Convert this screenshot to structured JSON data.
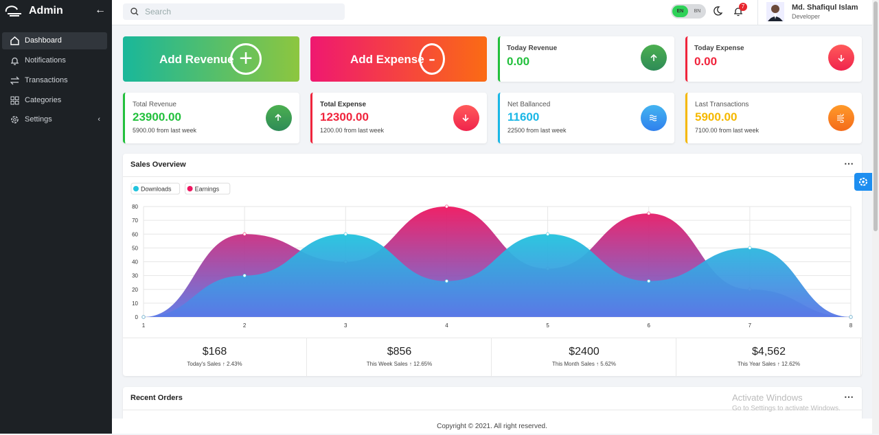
{
  "sidebar": {
    "brand": "Admin",
    "menu": [
      "Dashboard",
      "Notifications",
      "Transactions",
      "Categories",
      "Settings"
    ]
  },
  "header": {
    "search_placeholder": "Search",
    "languages": [
      "EN",
      "BN"
    ],
    "notification_count": 7,
    "user": {
      "name": "Md. Shafiqul Islam",
      "role": "Developer"
    }
  },
  "actions": [
    {
      "label": "Add Revenue",
      "symbol": "+"
    },
    {
      "label": "Add Expense",
      "symbol": "-"
    }
  ],
  "today": [
    {
      "title": "Today Revenue",
      "value": "0.00"
    },
    {
      "title": "Today Expense",
      "value": "0.00"
    }
  ],
  "stats": [
    {
      "title": "Total Revenue",
      "value": "23900.00",
      "note": "5900.00 from last week"
    },
    {
      "title": "Total Expense",
      "value": "12300.00",
      "note": "1200.00 from last week"
    },
    {
      "title": "Net Ballanced",
      "value": "11600",
      "note": "22500 from last week"
    },
    {
      "title": "Last Transactions",
      "value": "5900.00",
      "note": "7100.00 from last week"
    }
  ],
  "sales_overview": {
    "title": "Sales Overview",
    "chart": {
      "type": "area",
      "x": [
        1,
        2,
        3,
        4,
        5,
        6,
        7,
        8
      ],
      "series": [
        {
          "name": "Downloads",
          "color": "#22c3dd",
          "values": [
            0,
            30,
            60,
            26,
            60,
            26,
            50,
            0
          ]
        },
        {
          "name": "Earnings",
          "color": "#ee1660",
          "values": [
            0,
            60,
            40,
            80,
            35,
            75,
            20,
            0
          ]
        }
      ],
      "xlim": [
        1,
        8
      ],
      "ylim": [
        0,
        80
      ],
      "xticks": [
        1,
        2,
        3,
        4,
        5,
        6,
        7,
        8
      ],
      "yticks": [
        0,
        10,
        20,
        30,
        40,
        50,
        60,
        70,
        80
      ],
      "grid": true
    },
    "summary": [
      {
        "value": "$168",
        "label": "Today's Sales",
        "change": "2.43%"
      },
      {
        "value": "$856",
        "label": "This Week Sales",
        "change": "12.65%"
      },
      {
        "value": "$2400",
        "label": "This Month Sales",
        "change": "5.62%"
      },
      {
        "value": "$4,562",
        "label": "This Year Sales",
        "change": "12.62%"
      }
    ]
  },
  "recent_orders": {
    "title": "Recent Orders"
  },
  "footer": "Copyright © 2021. All right reserved.",
  "watermark": {
    "title": "Activate Windows",
    "subtitle": "Go to Settings to activate Windows."
  }
}
